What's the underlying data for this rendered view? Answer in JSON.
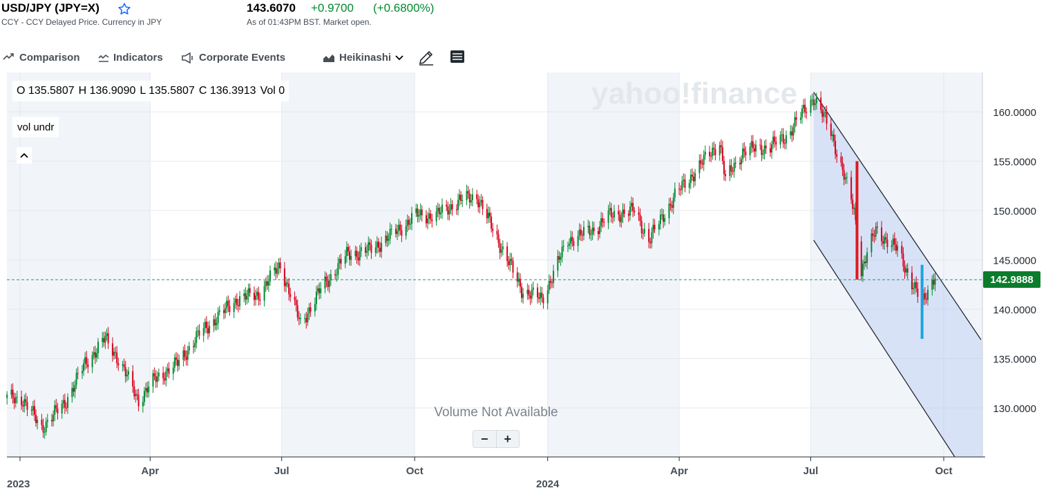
{
  "header": {
    "title": "USD/JPY (JPY=X)",
    "subtitle": "CCY - CCY Delayed Price. Currency in JPY",
    "price": "143.6070",
    "change": "+0.9700",
    "change_pct": "(+0.6800%)",
    "as_of": "As of 01:43PM BST. Market open."
  },
  "toolbar": {
    "comparison": "Comparison",
    "indicators": "Indicators",
    "corporate_events": "Corporate Events",
    "chart_type": "Heikinashi"
  },
  "ohlc": {
    "o": "O 135.5807",
    "h": "H 136.9090",
    "l": "L 135.5807",
    "c": "C 136.3913",
    "vol": "Vol 0"
  },
  "study_label": "vol undr",
  "watermark": "yahoo!finance",
  "volume_msg": "Volume Not Available",
  "zoom": {
    "minus": "−",
    "plus": "+"
  },
  "current_price_label": "142.9888",
  "colors": {
    "up": "#008a2e",
    "down": "#d6001c",
    "accent": "#0f69ff",
    "tag": "#0b7c2c"
  },
  "chart_data": {
    "type": "line",
    "title": "",
    "xlabel": "",
    "ylabel": "",
    "ylim": [
      125.0,
      163.0
    ],
    "y_ticks": [
      "160.0000",
      "155.0000",
      "150.0000",
      "145.0000",
      "140.0000",
      "135.0000",
      "130.0000"
    ],
    "x_tick_labels": [
      "Apr",
      "Jul",
      "Oct",
      "Apr",
      "Jul",
      "Oct"
    ],
    "year_labels": [
      "2023",
      "2024"
    ],
    "current_price": 142.99,
    "series": [
      {
        "x": [
          "2023-01-02",
          "2023-01-16",
          "2023-02-01",
          "2023-02-15",
          "2023-03-01",
          "2023-03-08",
          "2023-03-24",
          "2023-04-05",
          "2023-04-20",
          "2023-05-05",
          "2023-05-31",
          "2023-06-15",
          "2023-06-30",
          "2023-07-14",
          "2023-07-28",
          "2023-08-15",
          "2023-08-31",
          "2023-09-15",
          "2023-10-02",
          "2023-10-16",
          "2023-11-01",
          "2023-11-13",
          "2023-12-01",
          "2023-12-14",
          "2023-12-28",
          "2024-01-15",
          "2024-02-01",
          "2024-02-13",
          "2024-03-01",
          "2024-03-11",
          "2024-03-29",
          "2024-04-15",
          "2024-04-29",
          "2024-05-03",
          "2024-05-15",
          "2024-06-03",
          "2024-06-14",
          "2024-07-03",
          "2024-07-15",
          "2024-07-31",
          "2024-08-05",
          "2024-08-15",
          "2024-08-30",
          "2024-09-16",
          "2024-09-25"
        ],
        "values": [
          131.0,
          128.0,
          130.5,
          134.5,
          137.0,
          135.5,
          130.8,
          133.0,
          134.5,
          137.5,
          141.0,
          141.5,
          144.5,
          138.5,
          142.0,
          145.5,
          146.0,
          147.5,
          149.5,
          149.5,
          151.0,
          151.5,
          146.0,
          142.0,
          141.0,
          147.0,
          148.0,
          149.5,
          150.0,
          147.0,
          151.5,
          154.5,
          157.0,
          153.0,
          156.0,
          156.5,
          157.5,
          161.5,
          158.0,
          150.0,
          144.0,
          148.0,
          146.0,
          140.5,
          143.6
        ]
      }
    ],
    "annotations": {
      "channel": {
        "upper": [
          {
            "x": "2024-07-03",
            "y": 162.0
          },
          {
            "x": "2024-10-31",
            "y": 136.0
          }
        ],
        "lower": [
          {
            "x": "2024-07-03",
            "y": 147.0
          },
          {
            "x": "2024-10-31",
            "y": 120.0
          }
        ]
      },
      "highlight_down": {
        "x": "2024-08-02",
        "high": 155.0,
        "low": 143.0
      },
      "highlight_up": {
        "x": "2024-09-16",
        "high": 144.5,
        "low": 137.0
      }
    }
  }
}
